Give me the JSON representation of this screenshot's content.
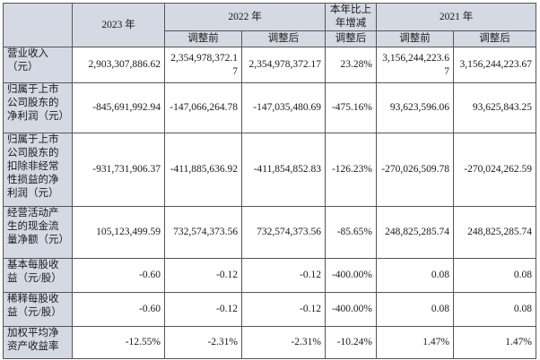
{
  "header": {
    "y2023": "2023 年",
    "y2022": "2022 年",
    "yoy": "本年比上年增减",
    "y2021": "2021 年",
    "before_adj": "调整前",
    "after_adj": "调整后",
    "yoy_sub": "调整后",
    "before_adj_2021": "调整前",
    "after_adj_2021": "调整后"
  },
  "rows": [
    {
      "label": "营业收入（元）",
      "v2023": "2,903,307,886.62",
      "v2022_before": "2,354,978,372.17",
      "v2022_after": "2,354,978,372.17",
      "yoy": "23.28%",
      "v2021_before": "3,156,244,223.67",
      "v2021_after": "3,156,244,223.67"
    },
    {
      "label": "归属于上市公司股东的净利润（元）",
      "v2023": "-845,691,992.94",
      "v2022_before": "-147,066,264.78",
      "v2022_after": "-147,035,480.69",
      "yoy": "-475.16%",
      "v2021_before": "93,623,596.06",
      "v2021_after": "93,625,843.25"
    },
    {
      "label": "归属于上市公司股东的扣除非经常性损益的净利润（元）",
      "v2023": "-931,731,906.37",
      "v2022_before": "-411,885,636.92",
      "v2022_after": "-411,854,852.83",
      "yoy": "-126.23%",
      "v2021_before": "-270,026,509.78",
      "v2021_after": "-270,024,262.59"
    },
    {
      "label": "经营活动产生的现金流量净额（元）",
      "v2023": "105,123,499.59",
      "v2022_before": "732,574,373.56",
      "v2022_after": "732,574,373.56",
      "yoy": "-85.65%",
      "v2021_before": "248,825,285.74",
      "v2021_after": "248,825,285.74"
    },
    {
      "label": "基本每股收益（元/股）",
      "v2023": "-0.60",
      "v2022_before": "-0.12",
      "v2022_after": "-0.12",
      "yoy": "-400.00%",
      "v2021_before": "0.08",
      "v2021_after": "0.08"
    },
    {
      "label": "稀释每股收益（元/股）",
      "v2023": "-0.60",
      "v2022_before": "-0.12",
      "v2022_after": "-0.12",
      "yoy": "-400.00%",
      "v2021_before": "0.08",
      "v2021_after": "0.08"
    },
    {
      "label": "加权平均净资产收益率",
      "v2023": "-12.55%",
      "v2022_before": "-2.31%",
      "v2022_after": "-2.31%",
      "yoy": "-10.24%",
      "v2021_before": "1.47%",
      "v2021_after": "1.47%"
    }
  ],
  "colors": {
    "header_bg": "#d5d9e3",
    "border": "#555555",
    "text": "#1a1a1a"
  }
}
